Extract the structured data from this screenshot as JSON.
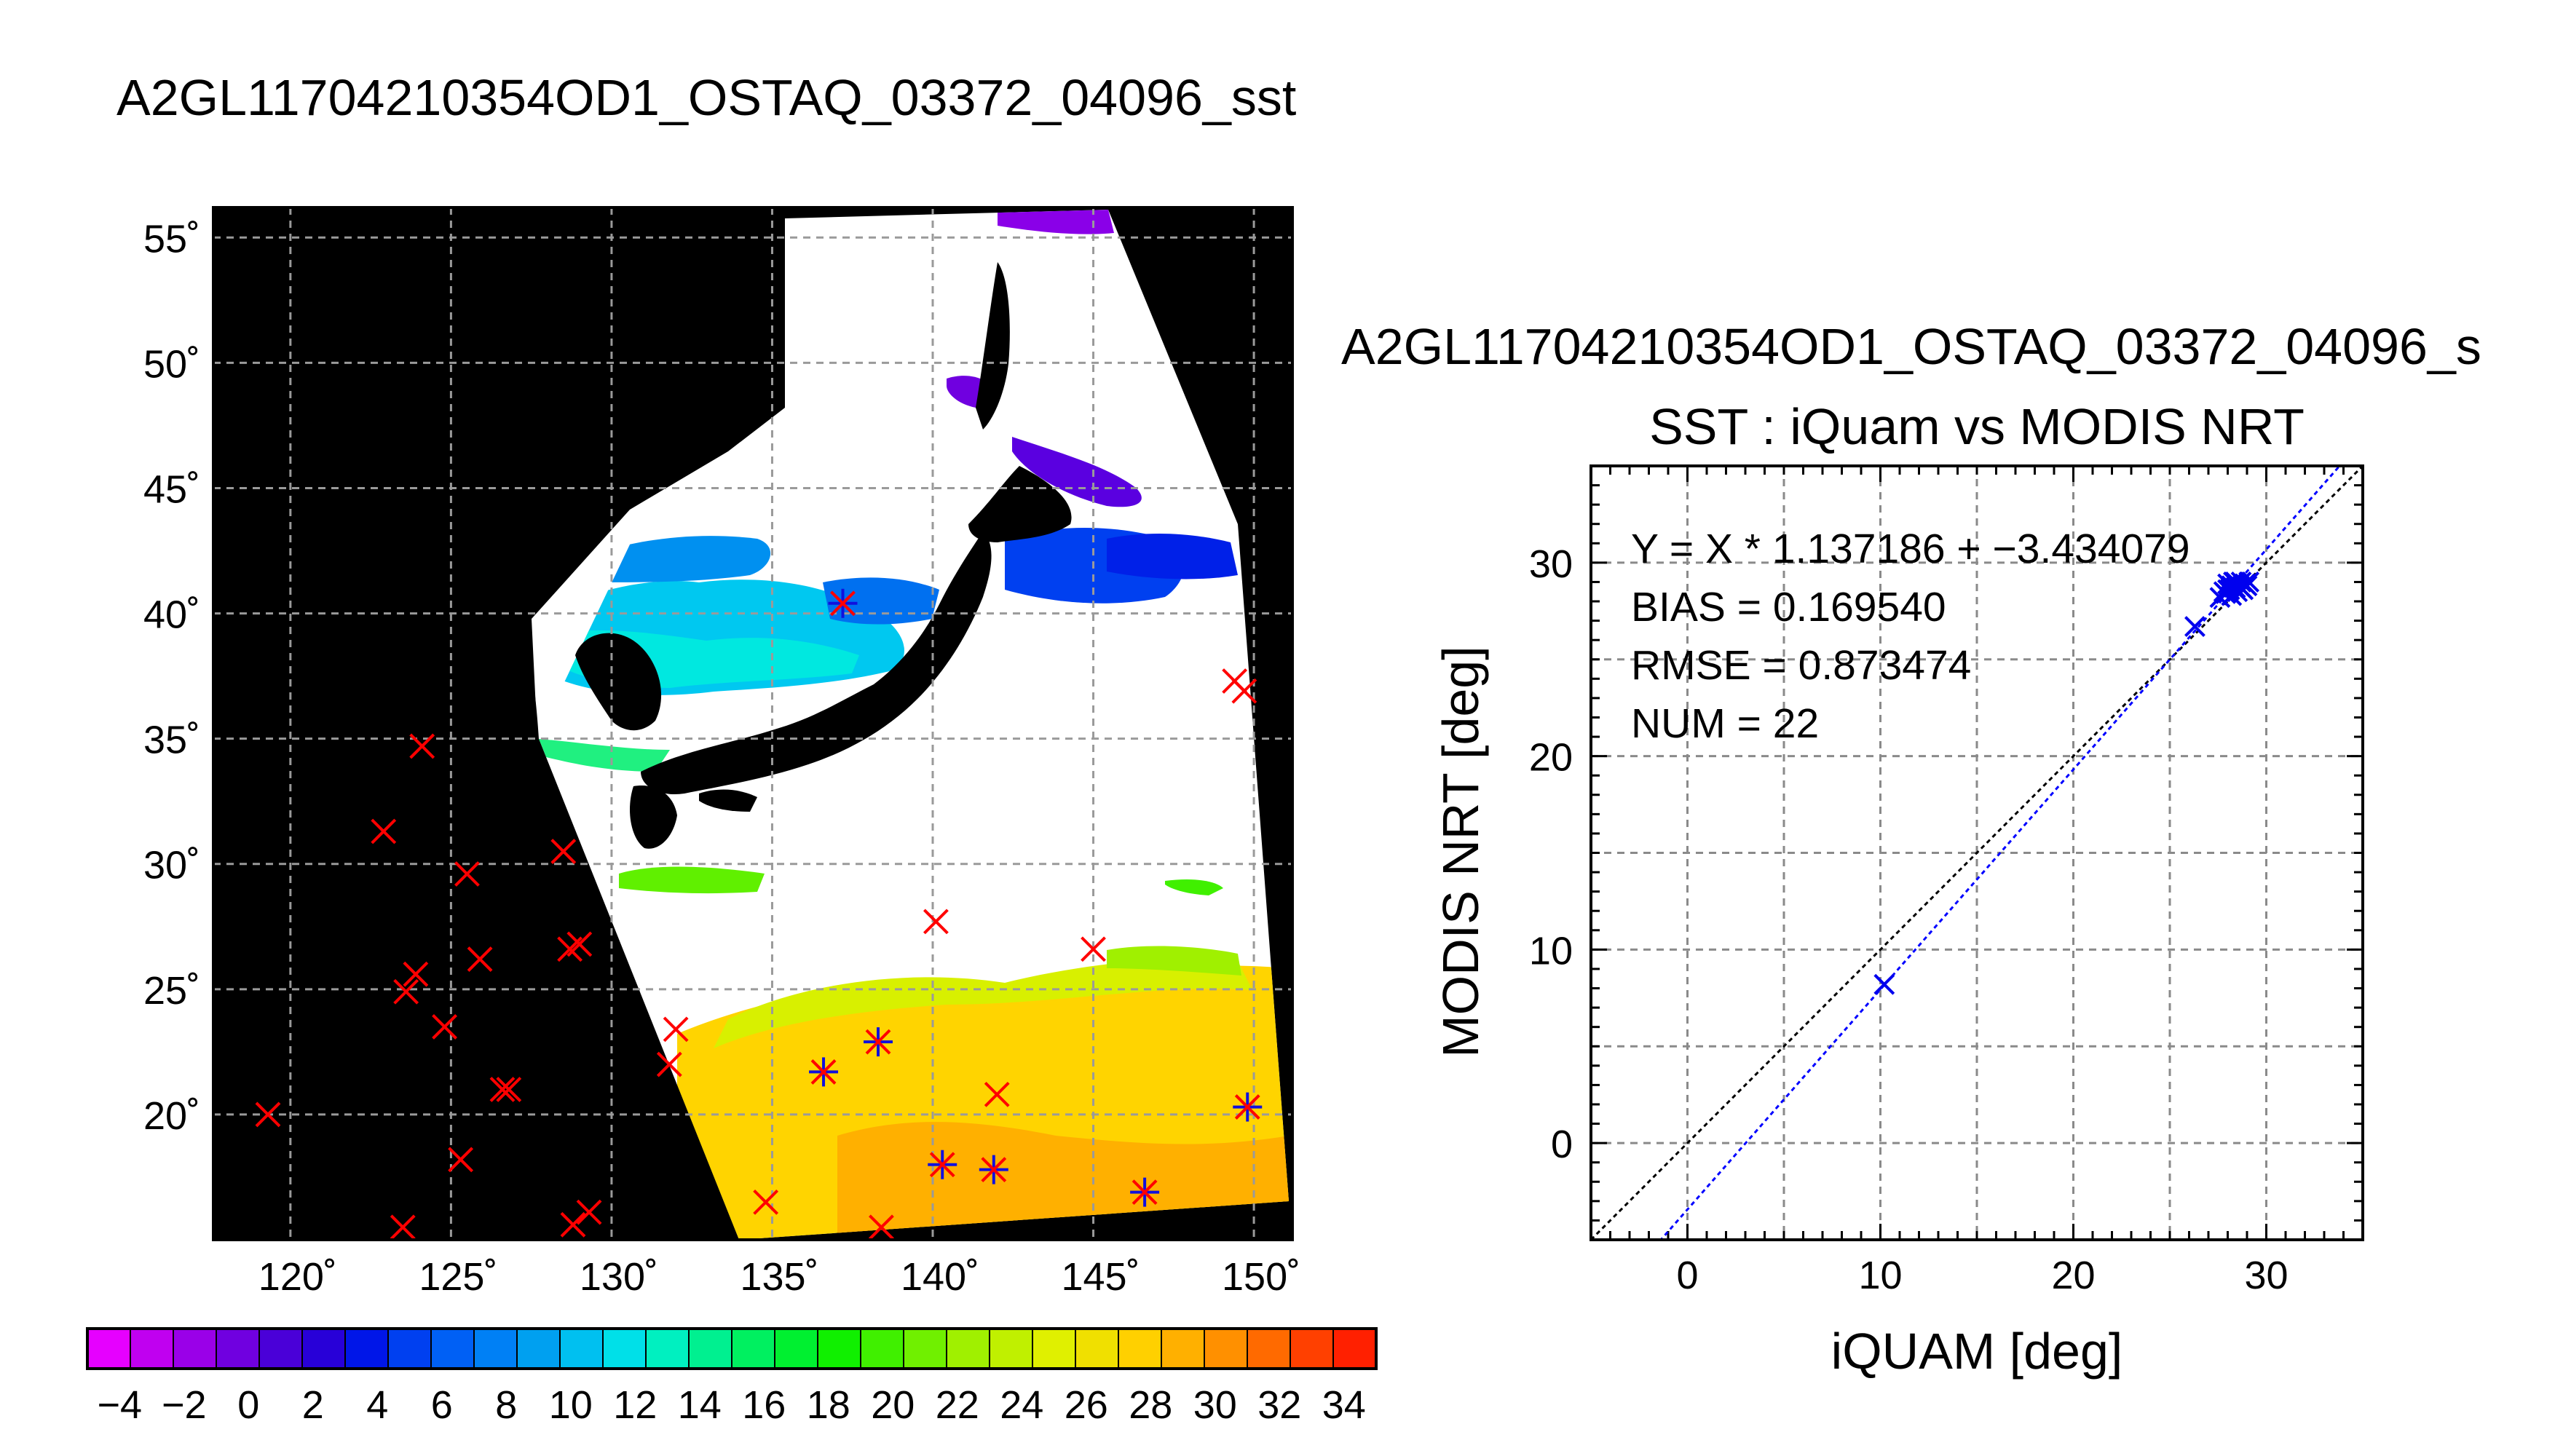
{
  "map_panel": {
    "title": "A2GL11704210354OD1_OSTAQ_03372_04096_sst",
    "lat_ticks": [
      {
        "value": 55,
        "label": "55˚"
      },
      {
        "value": 50,
        "label": "50˚"
      },
      {
        "value": 45,
        "label": "45˚"
      },
      {
        "value": 40,
        "label": "40˚"
      },
      {
        "value": 35,
        "label": "35˚"
      },
      {
        "value": 30,
        "label": "30˚"
      },
      {
        "value": 25,
        "label": "25˚"
      },
      {
        "value": 20,
        "label": "20˚"
      }
    ],
    "lon_ticks": [
      {
        "value": 120,
        "label": "120˚"
      },
      {
        "value": 125,
        "label": "125˚"
      },
      {
        "value": 130,
        "label": "130˚"
      },
      {
        "value": 135,
        "label": "135˚"
      },
      {
        "value": 140,
        "label": "140˚"
      },
      {
        "value": 145,
        "label": "145˚"
      },
      {
        "value": 150,
        "label": "150˚"
      }
    ],
    "lon_range": [
      117.6,
      151.2
    ],
    "lat_range": [
      15.0,
      56.2
    ],
    "colors": {
      "land": "#000000",
      "cloud": "#ffffff",
      "grid": "#888888",
      "red_marker": "#ff0000",
      "blue_marker": "#1010dd"
    },
    "red_markers": [
      [
        119.3,
        20.0
      ],
      [
        122.9,
        31.3
      ],
      [
        124.1,
        34.7
      ],
      [
        123.6,
        24.9
      ],
      [
        123.9,
        25.6
      ],
      [
        124.8,
        23.5
      ],
      [
        125.3,
        18.2
      ],
      [
        125.5,
        29.6
      ],
      [
        125.9,
        26.2
      ],
      [
        126.6,
        21.0
      ],
      [
        126.8,
        21.0
      ],
      [
        128.5,
        30.5
      ],
      [
        128.7,
        26.6
      ],
      [
        129.0,
        26.8
      ],
      [
        128.8,
        15.6
      ],
      [
        129.3,
        16.1
      ],
      [
        123.5,
        15.5
      ],
      [
        132.0,
        23.4
      ],
      [
        131.8,
        22.0
      ],
      [
        134.8,
        16.5
      ],
      [
        138.4,
        15.5
      ],
      [
        140.1,
        27.7
      ],
      [
        142.0,
        20.8
      ],
      [
        145.0,
        26.6
      ],
      [
        149.4,
        37.3
      ],
      [
        149.7,
        36.9
      ]
    ],
    "matched_markers": [
      [
        137.2,
        40.4
      ],
      [
        136.6,
        21.7
      ],
      [
        138.3,
        22.9
      ],
      [
        140.3,
        18.0
      ],
      [
        141.9,
        17.8
      ],
      [
        146.6,
        16.9
      ],
      [
        149.8,
        20.3
      ]
    ]
  },
  "colorbar": {
    "labels": [
      "−4",
      "−2",
      "0",
      "2",
      "4",
      "6",
      "8",
      "10",
      "12",
      "14",
      "16",
      "18",
      "20",
      "22",
      "24",
      "26",
      "28",
      "30",
      "32",
      "34"
    ],
    "range": [
      -5,
      35
    ],
    "colors": [
      "#e600ff",
      "#c000f0",
      "#9a00e8",
      "#7000e0",
      "#4a00d8",
      "#2800d8",
      "#0016e8",
      "#0040f0",
      "#0060f5",
      "#0080f5",
      "#00a0f0",
      "#00c0f0",
      "#00e0e8",
      "#00f0c0",
      "#00f090",
      "#00f060",
      "#00f030",
      "#10f000",
      "#40f000",
      "#70f000",
      "#a0f000",
      "#c0f000",
      "#e0f000",
      "#f0e000",
      "#ffd000",
      "#ffb000",
      "#ff9000",
      "#ff6a00",
      "#ff4000",
      "#ff2000"
    ]
  },
  "scatter_panel": {
    "title": "A2GL11704210354OD1_OSTAQ_03372_04096_s",
    "chart_data": {
      "type": "scatter",
      "title": "SST : iQuam vs MODIS NRT",
      "xlabel": "iQUAM [deg]",
      "ylabel": "MODIS NRT [deg]",
      "xlim": [
        -5,
        35
      ],
      "ylim": [
        -5,
        35
      ],
      "xticks": [
        0,
        10,
        20,
        30
      ],
      "yticks": [
        0,
        10,
        20,
        30
      ],
      "grid": true,
      "points": [
        [
          10.2,
          8.2
        ],
        [
          26.3,
          26.7
        ],
        [
          27.6,
          28.2
        ],
        [
          27.8,
          28.5
        ],
        [
          27.9,
          28.4
        ],
        [
          28.0,
          28.9
        ],
        [
          28.1,
          28.6
        ],
        [
          28.2,
          28.8
        ],
        [
          28.3,
          29.0
        ],
        [
          28.4,
          28.7
        ],
        [
          28.5,
          28.9
        ],
        [
          28.6,
          28.8
        ],
        [
          28.7,
          29.0
        ],
        [
          28.8,
          28.6
        ],
        [
          28.9,
          28.9
        ],
        [
          29.0,
          28.8
        ],
        [
          29.1,
          29.0
        ],
        [
          28.2,
          28.3
        ],
        [
          28.5,
          28.5
        ],
        [
          28.0,
          28.6
        ],
        [
          28.7,
          28.7
        ],
        [
          28.4,
          29.0
        ]
      ],
      "one_to_one_line": {
        "label": "",
        "color": "#000000"
      },
      "fit_line": {
        "slope": 1.137186,
        "intercept": -3.434079,
        "color": "#0000ff"
      },
      "annotations": [
        "Y = X * 1.137186 + −3.434079",
        "BIAS = 0.169540",
        "RMSE = 0.873474",
        "NUM = 22"
      ]
    }
  }
}
